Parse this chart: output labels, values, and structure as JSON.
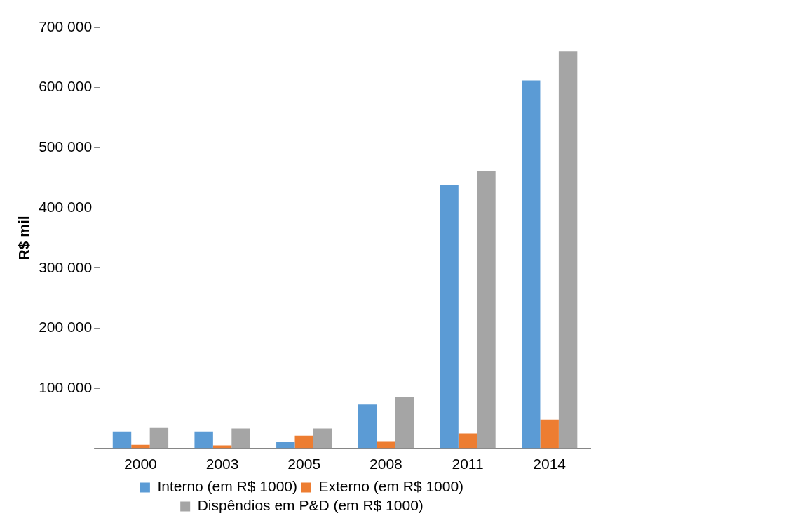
{
  "chart_data": {
    "type": "bar",
    "ylabel": "R$ mil",
    "categories": [
      "2000",
      "2003",
      "2005",
      "2008",
      "2011",
      "2014"
    ],
    "series": [
      {
        "name": "Interno (em R$ 1000)",
        "color": "#5b9bd5",
        "values": [
          28000,
          28000,
          11000,
          73000,
          438000,
          612000
        ]
      },
      {
        "name": "Externo (em R$ 1000)",
        "color": "#ed7d31",
        "values": [
          6000,
          5000,
          21000,
          12000,
          25000,
          48000
        ]
      },
      {
        "name": "Dispêndios em P&D (em R$ 1000)",
        "color": "#a5a5a5",
        "values": [
          35000,
          33000,
          33000,
          86000,
          462000,
          660000
        ]
      }
    ],
    "ylim": [
      0,
      700000
    ],
    "yticks": [
      {
        "value": 0,
        "label": null
      },
      {
        "value": 100000,
        "label": "100 000"
      },
      {
        "value": 200000,
        "label": "200 000"
      },
      {
        "value": 300000,
        "label": "300 000"
      },
      {
        "value": 400000,
        "label": "400 000"
      },
      {
        "value": 500000,
        "label": "500 000"
      },
      {
        "value": 600000,
        "label": "600 000"
      },
      {
        "value": 700000,
        "label": "700 000"
      }
    ],
    "grid": false,
    "legend": "bottom"
  }
}
